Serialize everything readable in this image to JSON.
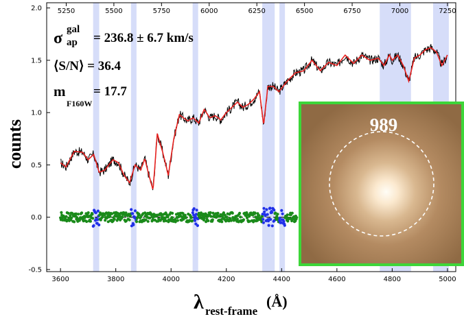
{
  "chart_data": {
    "type": "line",
    "ylabel": "counts",
    "xlabel": {
      "symbol": "λ",
      "subscript": "rest-frame",
      "unit": "(Å)"
    },
    "xlim": [
      3550,
      5030
    ],
    "ylim": [
      -0.52,
      2.05
    ],
    "xticks": [
      3600,
      3800,
      4000,
      4200,
      4400,
      4600,
      4800,
      5000
    ],
    "yticks": [
      -0.5,
      0.0,
      0.5,
      1.0,
      1.5,
      2.0
    ],
    "top_xticks": [
      5250,
      5500,
      5750,
      6000,
      6250,
      6500,
      6750,
      7000,
      7250
    ],
    "top_ratio": 1.45,
    "masked_bands": [
      [
        3718,
        3740
      ],
      [
        3855,
        3875
      ],
      [
        4078,
        4098
      ],
      [
        4330,
        4375
      ],
      [
        4392,
        4412
      ],
      [
        4755,
        4868
      ],
      [
        4948,
        5005
      ]
    ],
    "anchors_x": [
      3600,
      3620,
      3650,
      3680,
      3700,
      3720,
      3740,
      3760,
      3790,
      3810,
      3830,
      3850,
      3870,
      3890,
      3905,
      3920,
      3935,
      3950,
      3970,
      3990,
      4010,
      4030,
      4060,
      4080,
      4100,
      4120,
      4140,
      4160,
      4180,
      4200,
      4220,
      4240,
      4260,
      4280,
      4300,
      4320,
      4335,
      4350,
      4370,
      4390,
      4420,
      4450,
      4480,
      4510,
      4540,
      4570,
      4600,
      4630,
      4660,
      4690,
      4720,
      4750,
      4770,
      4790,
      4800,
      4820,
      4840,
      4860,
      4880,
      4900,
      4920,
      4940,
      4960,
      4980,
      5000
    ],
    "anchors_y": [
      0.52,
      0.48,
      0.63,
      0.62,
      0.55,
      0.6,
      0.43,
      0.45,
      0.55,
      0.52,
      0.4,
      0.33,
      0.5,
      0.45,
      0.56,
      0.4,
      0.26,
      0.8,
      0.62,
      0.4,
      0.75,
      0.98,
      0.92,
      0.95,
      0.9,
      1.03,
      0.95,
      0.97,
      0.93,
      1.0,
      1.05,
      1.1,
      1.05,
      1.08,
      1.13,
      1.2,
      0.88,
      1.25,
      1.25,
      1.2,
      1.3,
      1.38,
      1.4,
      1.5,
      1.4,
      1.48,
      1.45,
      1.55,
      1.47,
      1.55,
      1.5,
      1.52,
      1.45,
      1.55,
      1.5,
      1.55,
      1.45,
      1.3,
      1.52,
      1.55,
      1.6,
      1.62,
      1.58,
      1.45,
      1.55
    ],
    "residual_mean": 0.0,
    "residual_scatter": 0.045,
    "colors": {
      "data": "#000000",
      "model": "#e8211f",
      "residual_good": "#1a8a1a",
      "residual_masked": "#2030e8",
      "band": "#ccd4f7",
      "inset_border": "#3dd639"
    }
  },
  "annotations": {
    "sigma_symbol": "σ",
    "sigma_sup": "gal",
    "sigma_sub": "ap",
    "sigma_value": "= 236.8 ± 6.7 km/s",
    "sn": "⟨S/N⟩ = 36.4",
    "mag_symbol": "m",
    "mag_sub": "F160W",
    "mag_value": "= 17.7"
  },
  "inset": {
    "label": "989"
  }
}
